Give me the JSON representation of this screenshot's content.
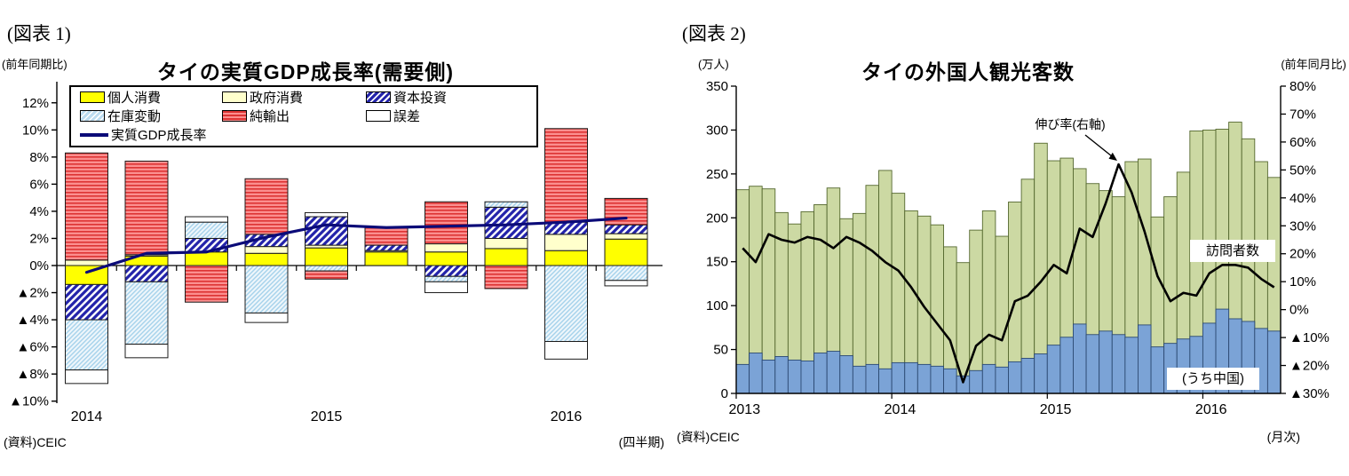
{
  "figure1": {
    "tag": "(図表 1)",
    "note_y": "(前年同期比)",
    "title": "タイの実質GDP成長率(需要側)",
    "legend": [
      {
        "label": "個人消費",
        "swatch": "consumption"
      },
      {
        "label": "政府消費",
        "swatch": "govt"
      },
      {
        "label": "資本投資",
        "swatch": "capital"
      },
      {
        "label": "在庫変動",
        "swatch": "inventory"
      },
      {
        "label": "純輸出",
        "swatch": "netexp"
      },
      {
        "label": "誤差",
        "swatch": "error"
      },
      {
        "label": "実質GDP成長率",
        "swatch": "line"
      }
    ],
    "y_ticks": [
      "12%",
      "10%",
      "8%",
      "6%",
      "4%",
      "2%",
      "0%",
      "▲2%",
      "▲4%",
      "▲6%",
      "▲8%",
      "▲10%"
    ],
    "x_labels": [
      "2014",
      "2015",
      "2016"
    ],
    "source": "(資料)CEIC",
    "note_x": "(四半期)"
  },
  "figure2": {
    "tag": "(図表 2)",
    "note_left": "(万人)",
    "title": "タイの外国人観光客数",
    "note_right": "(前年同月比)",
    "growth_label": "伸び率(右軸)",
    "visitors_label": "訪問者数",
    "china_label": "(うち中国)",
    "left_ticks": [
      "350",
      "300",
      "250",
      "200",
      "150",
      "100",
      "50",
      "0"
    ],
    "right_ticks": [
      "80%",
      "70%",
      "60%",
      "50%",
      "40%",
      "30%",
      "20%",
      "10%",
      "0%",
      "▲10%",
      "▲20%",
      "▲30%"
    ],
    "x_labels": [
      "2013",
      "2014",
      "2015",
      "2016"
    ],
    "source": "(資料)CEIC",
    "note_x": "(月次)"
  },
  "colors": {
    "consumption": "#ffff00",
    "govt": "#ffffcc",
    "capital_stripe": "#2323aa",
    "inventory_bg": "#eef6fb",
    "inventory_stripe": "#a5d2eb",
    "netexp_bg": "#fb8f8f",
    "netexp_stripe": "#dd3333",
    "error": "#ffffff",
    "bar_border": "#1b1b1b",
    "gdp_line": "#0b0b78",
    "visitors_fill": "#ccd9a3",
    "visitors_border": "#55682f",
    "china_fill": "#7ba3d6",
    "china_border": "#2c4a73",
    "growth_line": "#000000"
  },
  "chart_data": [
    {
      "id": "thailand-real-gdp-growth-demand-side",
      "type": "bar",
      "subtype": "stacked-bar-with-line",
      "title": "タイの実質GDP成長率(需要側)",
      "unit": "% (前年同期比, percentage-point contributions)",
      "categories": [
        "2014Q1",
        "2014Q2",
        "2014Q3",
        "2014Q4",
        "2015Q1",
        "2015Q2",
        "2015Q3",
        "2015Q4",
        "2016Q1",
        "2016Q2"
      ],
      "ylim": [
        -10,
        12
      ],
      "grid": false,
      "legend_position": "top-inside-box",
      "series": [
        {
          "name": "個人消費",
          "key": "consumption",
          "values": [
            -1.4,
            0.7,
            1.0,
            0.9,
            1.3,
            1.0,
            1.0,
            1.25,
            1.1,
            1.95
          ]
        },
        {
          "name": "政府消費",
          "key": "govt",
          "values": [
            0.4,
            0.1,
            0.0,
            0.5,
            0.2,
            0.1,
            0.6,
            0.75,
            1.2,
            0.4
          ]
        },
        {
          "name": "資本投資",
          "key": "capital",
          "values": [
            -2.6,
            -1.2,
            1.0,
            0.9,
            2.1,
            0.4,
            -0.8,
            2.3,
            0.9,
            0.65
          ]
        },
        {
          "name": "在庫変動",
          "key": "inventory",
          "values": [
            -3.7,
            -4.6,
            1.2,
            -3.5,
            -0.4,
            0.0,
            -0.4,
            0.4,
            -5.6,
            -1.1
          ]
        },
        {
          "name": "純輸出",
          "key": "netexp",
          "values": [
            7.9,
            6.9,
            -2.7,
            4.1,
            -0.6,
            1.3,
            3.1,
            -1.7,
            6.9,
            1.95
          ]
        },
        {
          "name": "誤差",
          "key": "error",
          "values": [
            -1.0,
            -1.0,
            0.4,
            -0.7,
            0.3,
            0.0,
            -0.8,
            0.0,
            -1.3,
            -0.4
          ]
        }
      ],
      "line": {
        "name": "実質GDP成長率",
        "values": [
          -0.5,
          0.9,
          1.0,
          2.1,
          3.0,
          2.8,
          2.9,
          3.0,
          3.2,
          3.5
        ]
      },
      "year_label_positions": [
        0,
        4,
        8
      ]
    },
    {
      "id": "thailand-foreign-tourist-arrivals",
      "type": "bar",
      "subtype": "bar-with-line-dual-axis",
      "title": "タイの外国人観光客数",
      "x_range": "2013-01 to 2016-06 (monthly)",
      "left_unit": "万人",
      "right_unit": "% 前年同月比",
      "left_ylim": [
        0,
        350
      ],
      "right_ylim": [
        -30,
        80
      ],
      "grid": false,
      "series": [
        {
          "name": "訪問者数",
          "key": "visitors_total",
          "axis": "left",
          "values": [
            232,
            236,
            233,
            206,
            193,
            207,
            215,
            234,
            199,
            205,
            237,
            254,
            228,
            208,
            202,
            192,
            167,
            149,
            186,
            208,
            179,
            218,
            244,
            285,
            265,
            268,
            256,
            239,
            231,
            224,
            264,
            267,
            201,
            224,
            252,
            299,
            300,
            301,
            309,
            290,
            264,
            246
          ]
        },
        {
          "name": "(うち中国)",
          "key": "china",
          "axis": "left",
          "values": [
            33,
            46,
            38,
            42,
            38,
            37,
            46,
            48,
            43,
            31,
            33,
            28,
            35,
            35,
            33,
            31,
            28,
            20,
            26,
            33,
            30,
            36,
            40,
            45,
            55,
            64,
            79,
            67,
            71,
            67,
            64,
            78,
            53,
            57,
            62,
            65,
            80,
            96,
            85,
            82,
            74,
            71
          ]
        }
      ],
      "line": {
        "name": "伸び率(右軸)",
        "axis": "right",
        "values": [
          22,
          17,
          27,
          25,
          24,
          26,
          25,
          22,
          26,
          24,
          21,
          17,
          14,
          8,
          1,
          -5,
          -11,
          -26,
          -13,
          -9,
          -11,
          3,
          5,
          10,
          16,
          13,
          29,
          26,
          38,
          52,
          42,
          28,
          12,
          3,
          6,
          5,
          13,
          16,
          16,
          15,
          11,
          8
        ]
      },
      "year_label_positions": [
        0,
        12,
        24,
        36
      ]
    }
  ]
}
